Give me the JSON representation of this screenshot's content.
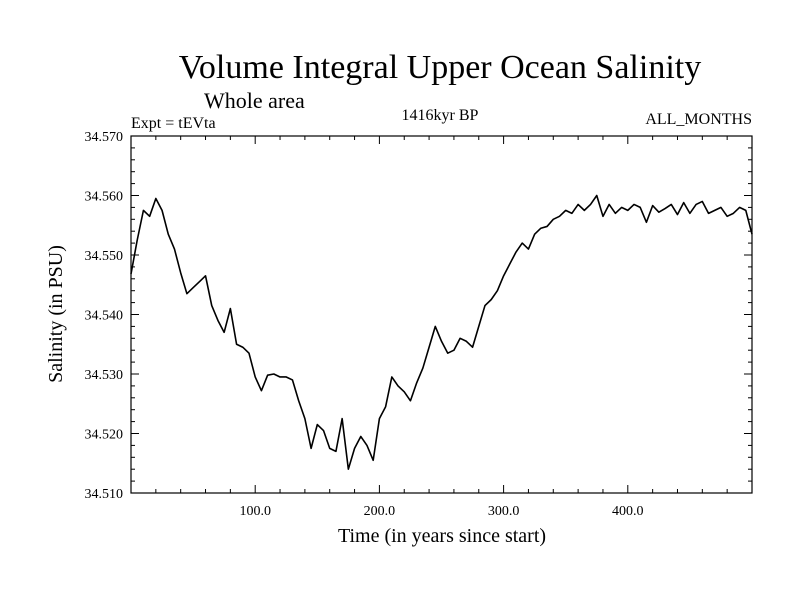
{
  "chart_data": {
    "type": "line",
    "title": "Volume Integral Upper Ocean Salinity",
    "subtitle": "Whole area",
    "expt_label": "Expt = tEVta",
    "period_label": "1416kyr BP",
    "months_label": "ALL_MONTHS",
    "xlabel": "Time (in years since start)",
    "ylabel": "Salinity (in PSU)",
    "xlim": [
      0,
      500
    ],
    "ylim": [
      34.51,
      34.57
    ],
    "xticks": [
      100,
      200,
      300,
      400
    ],
    "xtick_labels": [
      "100.0",
      "200.0",
      "300.0",
      "400.0"
    ],
    "yticks": [
      34.51,
      34.52,
      34.53,
      34.54,
      34.55,
      34.56,
      34.57
    ],
    "ytick_labels": [
      "34.510",
      "34.520",
      "34.530",
      "34.540",
      "34.550",
      "34.560",
      "34.570"
    ],
    "grid": false,
    "series": [
      {
        "name": "Salinity",
        "x": [
          0,
          5,
          10,
          15,
          20,
          25,
          30,
          35,
          40,
          45,
          50,
          55,
          60,
          65,
          70,
          75,
          80,
          85,
          90,
          95,
          100,
          105,
          110,
          115,
          120,
          125,
          130,
          135,
          140,
          145,
          150,
          155,
          160,
          165,
          170,
          175,
          180,
          185,
          190,
          195,
          200,
          205,
          210,
          215,
          220,
          225,
          230,
          235,
          240,
          245,
          250,
          255,
          260,
          265,
          270,
          275,
          280,
          285,
          290,
          295,
          300,
          305,
          310,
          315,
          320,
          325,
          330,
          335,
          340,
          345,
          350,
          355,
          360,
          365,
          370,
          375,
          380,
          385,
          390,
          395,
          400,
          405,
          410,
          415,
          420,
          425,
          430,
          435,
          440,
          445,
          450,
          455,
          460,
          465,
          470,
          475,
          480,
          485,
          490,
          495,
          500
        ],
        "values": [
          34.5468,
          34.5525,
          34.5575,
          34.5565,
          34.5595,
          34.5575,
          34.5535,
          34.551,
          34.547,
          34.5435,
          34.5445,
          34.5455,
          34.5465,
          34.5415,
          34.539,
          34.537,
          34.541,
          34.535,
          34.5345,
          34.5335,
          34.5295,
          34.5272,
          34.5298,
          34.53,
          34.5295,
          34.5295,
          34.529,
          34.5255,
          34.5225,
          34.5175,
          34.5215,
          34.5205,
          34.5175,
          34.517,
          34.5225,
          34.514,
          34.5175,
          34.5195,
          34.518,
          34.5155,
          34.5225,
          34.5245,
          34.5295,
          34.528,
          34.527,
          34.5255,
          34.5285,
          34.531,
          34.5345,
          34.538,
          34.5355,
          34.5335,
          34.534,
          34.536,
          34.5355,
          34.5345,
          34.538,
          34.5415,
          34.5425,
          34.544,
          34.5465,
          34.5485,
          34.5505,
          34.552,
          34.551,
          34.5535,
          34.5545,
          34.5548,
          34.556,
          34.5565,
          34.5575,
          34.557,
          34.5585,
          34.5575,
          34.5585,
          34.56,
          34.5565,
          34.5585,
          34.557,
          34.558,
          34.5575,
          34.5585,
          34.558,
          34.5555,
          34.5583,
          34.5572,
          34.5578,
          34.5585,
          34.5568,
          34.5588,
          34.557,
          34.5585,
          34.559,
          34.557,
          34.5575,
          34.558,
          34.5565,
          34.557,
          34.558,
          34.5575,
          34.5535
        ]
      }
    ]
  }
}
